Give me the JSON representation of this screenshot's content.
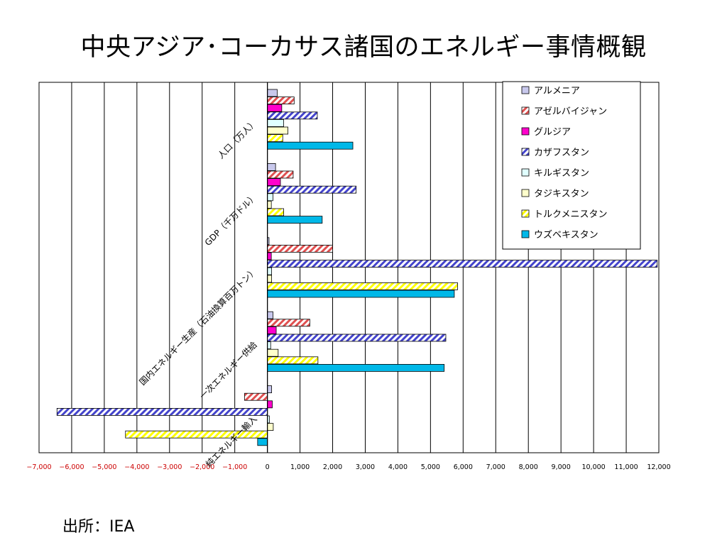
{
  "title": "中央アジア･コーカサス諸国のエネルギー事情概観",
  "source": "出所：IEA",
  "chart_data": {
    "type": "bar",
    "orientation": "horizontal",
    "categories": [
      "人口（万人）",
      "GDP（千万ドル）",
      "国内エネルギー生産（石油換算百万トン）",
      "一次エネルギー供給",
      "純エネルギー輸入"
    ],
    "xlim": [
      -7000,
      12000
    ],
    "xticks": [
      -7000,
      -6000,
      -5000,
      -4000,
      -3000,
      -2000,
      -1000,
      0,
      1000,
      2000,
      3000,
      4000,
      5000,
      6000,
      7000,
      8000,
      9000,
      10000,
      11000,
      12000
    ],
    "xtick_labels": [
      "−7,000",
      "−6,000",
      "−5,000",
      "−4,000",
      "−3,000",
      "−2,000",
      "−1,000",
      "0",
      "1,000",
      "2,000",
      "3,000",
      "4,000",
      "5,000",
      "6,000",
      "7,000",
      "8,000",
      "9,000",
      "10,000",
      "11,000",
      "12,000"
    ],
    "grid": true,
    "legend_position": "top-right",
    "series": [
      {
        "name": "アルメニア",
        "color": "#c8c8ec",
        "pattern": "solid",
        "values": [
          300,
          250,
          50,
          170,
          130
        ]
      },
      {
        "name": "アゼルバイジャン",
        "color": "#e05050",
        "pattern": "hatch",
        "values": [
          820,
          790,
          2000,
          1300,
          -700
        ]
      },
      {
        "name": "グルジア",
        "color": "#ff00cc",
        "pattern": "solid",
        "values": [
          440,
          400,
          120,
          270,
          150
        ]
      },
      {
        "name": "カザフスタン",
        "color": "#4444cc",
        "pattern": "hatch",
        "values": [
          1530,
          2720,
          11950,
          5470,
          -6450
        ]
      },
      {
        "name": "キルギスタン",
        "color": "#e0ffff",
        "pattern": "solid",
        "values": [
          500,
          170,
          130,
          100,
          60
        ]
      },
      {
        "name": "タジキスタン",
        "color": "#ffffcc",
        "pattern": "solid",
        "values": [
          630,
          120,
          130,
          330,
          180
        ]
      },
      {
        "name": "トルクメニスタン",
        "color": "#ffff00",
        "pattern": "hatch",
        "values": [
          470,
          500,
          5830,
          1550,
          -4350
        ]
      },
      {
        "name": "ウズベキスタン",
        "color": "#00b8e8",
        "pattern": "solid",
        "values": [
          2620,
          1680,
          5730,
          5420,
          -300
        ]
      }
    ]
  }
}
